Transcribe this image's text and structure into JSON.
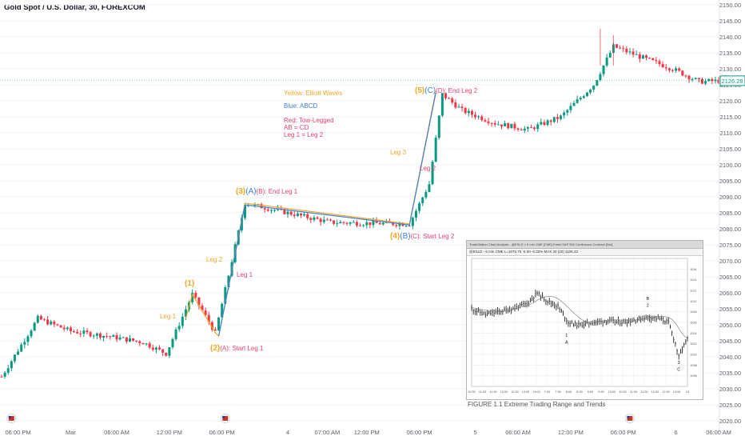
{
  "header": {
    "title": "Gold Spot / U.S. Dollar, 30, FOREXCOM"
  },
  "colors": {
    "up": "#089981",
    "down": "#f23645",
    "elliott": "#f5a623",
    "abcd": "#3d7fd9",
    "two_legged": "#e8406e",
    "bg": "#ffffff",
    "grid": "#f0f3fa",
    "axis_text": "#5d606b",
    "price_tag": "#089981"
  },
  "current_price": {
    "value": 2126.28,
    "label": "2126.28"
  },
  "legend": {
    "yellow": "Yellow: Elliott Waves",
    "blue": "Blue: ABCD",
    "red_title": "Red: Tow-Legged",
    "red_line2": "AB = CD",
    "red_line3": "Leg 1 = Leg 2"
  },
  "annotations": {
    "w1": "(1)",
    "w2": "(2)",
    "w2_tail": "(A): Start Leg 1",
    "w3": "(3)",
    "w3_mid": "(A)",
    "w3_tail": "(B): End Leg 1",
    "w4": "(4)",
    "w4_mid": "(B)",
    "w4_tail": "(C): Start Leg 2",
    "w5": "(5)",
    "w5_mid": "(C)",
    "w5_tail": "(D): End Leg 2",
    "leg1_yellow": "Leg 1",
    "leg2_yellow": "Leg 2",
    "leg3_yellow": "Leg 3",
    "leg1_red": "Leg 1",
    "leg2_red": "Leg 2"
  },
  "chart_data": {
    "type": "candlestick",
    "title": "Gold Spot / U.S. Dollar, 30, FOREXCOM",
    "ylim": [
      2020,
      2150
    ],
    "y_ticks": [
      2020,
      2025,
      2030,
      2035,
      2040,
      2045,
      2050,
      2055,
      2060,
      2065,
      2070,
      2075,
      2080,
      2085,
      2090,
      2095,
      2100,
      2105,
      2110,
      2115,
      2120,
      2125,
      2130,
      2135,
      2140,
      2145,
      2150
    ],
    "y_tick_labels": [
      "2020.00",
      "2025.00",
      "2030.00",
      "2035.00",
      "2040.00",
      "2045.00",
      "2050.00",
      "2055.00",
      "2060.00",
      "2065.00",
      "2070.00",
      "2075.00",
      "2080.00",
      "2085.00",
      "2090.00",
      "2095.00",
      "2100.00",
      "2105.00",
      "2110.00",
      "2115.00",
      "2120.00",
      "2125.00",
      "2130.00",
      "2135.00",
      "2140.00",
      "2145.00",
      "2150.00"
    ],
    "x_ticks": [
      {
        "i": 5,
        "label": "06:00 PM"
      },
      {
        "i": 21,
        "label": "Mar"
      },
      {
        "i": 35,
        "label": "06:00 AM"
      },
      {
        "i": 51,
        "label": "12:00 PM"
      },
      {
        "i": 67,
        "label": "06:00 PM"
      },
      {
        "i": 87,
        "label": "4"
      },
      {
        "i": 99,
        "label": "07:00 AM"
      },
      {
        "i": 111,
        "label": "12:00 PM"
      },
      {
        "i": 127,
        "label": "06:00 PM"
      },
      {
        "i": 144,
        "label": "5"
      },
      {
        "i": 157,
        "label": "06:00 AM"
      },
      {
        "i": 173,
        "label": "12:00 PM"
      },
      {
        "i": 189,
        "label": "06:00 PM"
      },
      {
        "i": 205,
        "label": "6"
      },
      {
        "i": 218,
        "label": "06:00 AM"
      }
    ],
    "session_marker_indices": [
      3,
      68,
      191
    ],
    "waves": {
      "elliott": [
        [
          0,
          2033.8
        ],
        [
          11,
          2052
        ],
        [
          21,
          2048
        ],
        [
          32,
          2046.5
        ],
        [
          43,
          2044.5
        ],
        [
          50,
          2041
        ],
        [
          58,
          2059.5
        ],
        [
          65,
          2047.5
        ],
        [
          74,
          2088
        ],
        [
          100,
          2082
        ],
        [
          124,
          2081.5
        ],
        [
          130,
          2094
        ],
        [
          134,
          2122
        ],
        [
          140,
          2117
        ],
        [
          150,
          2113
        ],
        [
          160,
          2111
        ],
        [
          170,
          2115
        ],
        [
          180,
          2125
        ],
        [
          186,
          2137
        ],
        [
          196,
          2133
        ],
        [
          204,
          2130
        ],
        [
          212,
          2126
        ],
        [
          220,
          2126.28
        ]
      ]
    },
    "overlay_lines": {
      "elliott": [
        [
          58,
          2056
        ],
        [
          58,
          2056
        ],
        [
          59,
          2060
        ],
        [
          66,
          2046.5
        ],
        [
          74,
          2088
        ],
        [
          124,
          2081.5
        ],
        [
          132,
          2123
        ]
      ],
      "abcd": [
        [
          66,
          2046.5
        ],
        [
          74,
          2087.5
        ],
        [
          124,
          2081.2
        ],
        [
          132,
          2122.5
        ]
      ]
    },
    "inset": {
      "header": "TradeStation Chart Analysis - @ESLD > 5 min CME [CME] Emini S&P 500 Continuous Contract [Nor]",
      "subheader": "@ESLD - 5 min CME   L=1075.75 -5.00 -0.32%   MAX 20 (20) 1106.23",
      "caption": "FIGURE 1.1 Extreme Trading Range and Trends",
      "ylim": [
        1094,
        1118
      ],
      "y_ticks": [
        1096,
        1098,
        1100,
        1102,
        1104,
        1106,
        1108,
        1110,
        1112,
        1114,
        1116
      ],
      "x_tick_labels": [
        "10:30",
        "11:00",
        "11:30",
        "12:00",
        "12:30",
        "13:00",
        "13:00",
        "7:00",
        "7:30",
        "8:00",
        "8:30",
        "9:00",
        "9:30",
        "10:00",
        "10:30",
        "11:00",
        "11:30",
        "12:00",
        "12:30",
        "13:00",
        "13"
      ],
      "labels": {
        "a1": "1",
        "a2": "A",
        "b1": "B",
        "b2": "2",
        "c1": "3",
        "c2": "C"
      },
      "path": [
        [
          0,
          1108.5
        ],
        [
          8,
          1107.5
        ],
        [
          16,
          1108
        ],
        [
          24,
          1108.6
        ],
        [
          32,
          1109.5
        ],
        [
          38,
          1111.5
        ],
        [
          44,
          1110
        ],
        [
          50,
          1109
        ],
        [
          56,
          1106
        ],
        [
          62,
          1105.5
        ],
        [
          70,
          1106
        ],
        [
          78,
          1106.3
        ],
        [
          86,
          1106
        ],
        [
          94,
          1106.4
        ],
        [
          102,
          1107
        ],
        [
          108,
          1106.8
        ],
        [
          114,
          1106
        ],
        [
          118,
          1102
        ],
        [
          120,
          1099.5
        ],
        [
          122,
          1101
        ],
        [
          125,
          1103
        ]
      ]
    }
  }
}
